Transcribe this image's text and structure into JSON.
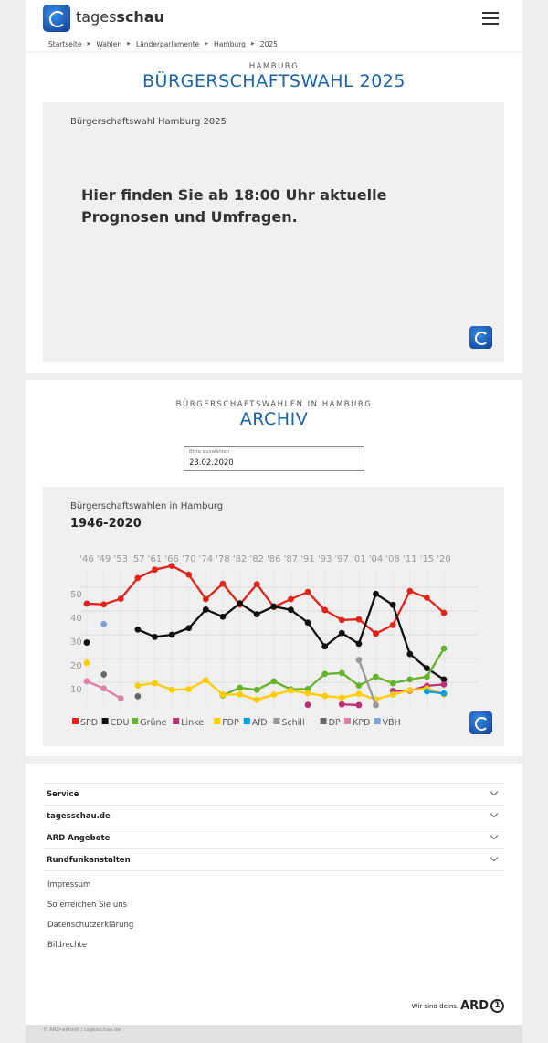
{
  "header": {
    "brand_light": "tages",
    "brand_bold": "schau",
    "breadcrumb": [
      "Startseite",
      "Wahlen",
      "Länderparlamente",
      "Hamburg",
      "2025"
    ]
  },
  "section1": {
    "kicker": "HAMBURG",
    "title": "BÜRGERSCHAFTSWAHL 2025",
    "box_caption": "Bürgerschaftswahl Hamburg 2025",
    "message": "Hier finden Sie ab 18:00 Uhr aktuelle Prognosen und Umfragen."
  },
  "section2": {
    "kicker": "BÜRGERSCHAFTSWAHLEN IN HAMBURG",
    "title": "ARCHIV",
    "select": {
      "label": "Bitte auswählen",
      "value": "23.02.2020"
    }
  },
  "chart_data": {
    "type": "line",
    "title": "Bürgerschaftswahlen in Hamburg",
    "subtitle": "1946-2020",
    "categories": [
      "'46",
      "'49",
      "'53",
      "'57",
      "'61",
      "'66",
      "'70",
      "'74",
      "'78",
      "'82",
      "'82",
      "'86",
      "'87",
      "'91",
      "'93",
      "'97",
      "'01",
      "'04",
      "'08",
      "'11",
      "'15",
      "'20"
    ],
    "yticks": [
      10,
      20,
      30,
      40,
      50
    ],
    "ylim": [
      0,
      60
    ],
    "grid": true,
    "legend": "bottom",
    "series": [
      {
        "name": "SPD",
        "color": "#e2231a",
        "values": [
          43.1,
          42.8,
          45.2,
          53.9,
          57.4,
          59.0,
          55.3,
          45.0,
          51.5,
          42.7,
          51.3,
          41.7,
          45.0,
          48.0,
          40.4,
          36.2,
          36.5,
          30.5,
          34.1,
          48.4,
          45.6,
          39.2
        ]
      },
      {
        "name": "CDU",
        "color": "#111111",
        "values": [
          26.7,
          null,
          null,
          32.2,
          29.1,
          30.0,
          32.8,
          40.6,
          37.6,
          43.2,
          38.6,
          41.9,
          40.5,
          35.1,
          25.1,
          30.7,
          26.2,
          47.2,
          42.6,
          21.9,
          15.9,
          11.2
        ]
      },
      {
        "name": "Grüne",
        "color": "#64b32e",
        "values": [
          null,
          null,
          null,
          null,
          null,
          null,
          null,
          null,
          4.5,
          7.7,
          6.8,
          10.4,
          7.0,
          7.2,
          13.5,
          13.9,
          8.6,
          12.3,
          9.6,
          11.2,
          12.3,
          24.2
        ]
      },
      {
        "name": "Linke",
        "color": "#be3075",
        "values": [
          null,
          null,
          null,
          null,
          null,
          null,
          null,
          null,
          null,
          null,
          null,
          null,
          null,
          0.5,
          null,
          0.7,
          0.4,
          null,
          6.4,
          6.4,
          8.5,
          9.1
        ]
      },
      {
        "name": "FDP",
        "color": "#ffcc00",
        "values": [
          18.2,
          null,
          null,
          8.6,
          9.6,
          6.8,
          7.1,
          10.9,
          4.8,
          4.9,
          2.6,
          4.8,
          6.5,
          5.4,
          4.2,
          3.5,
          5.1,
          2.8,
          4.8,
          6.7,
          7.4,
          4.9
        ]
      },
      {
        "name": "AfD",
        "color": "#009ee0",
        "values": [
          null,
          null,
          null,
          null,
          null,
          null,
          null,
          null,
          null,
          null,
          null,
          null,
          null,
          null,
          null,
          null,
          null,
          null,
          null,
          null,
          6.1,
          5.3
        ]
      },
      {
        "name": "Schill",
        "color": "#999999",
        "values": [
          null,
          null,
          null,
          null,
          null,
          null,
          null,
          null,
          null,
          null,
          null,
          null,
          null,
          null,
          null,
          null,
          19.4,
          0.4,
          null,
          null,
          null,
          null
        ]
      },
      {
        "name": "DP",
        "color": "#666666",
        "values": [
          null,
          13.3,
          null,
          4.1,
          null,
          null,
          null,
          null,
          null,
          null,
          null,
          null,
          null,
          null,
          null,
          null,
          null,
          null,
          null,
          null,
          null,
          null
        ]
      },
      {
        "name": "KPD",
        "color": "#e07fa8",
        "values": [
          10.4,
          7.4,
          3.2,
          null,
          null,
          null,
          null,
          null,
          null,
          null,
          null,
          null,
          null,
          null,
          null,
          null,
          null,
          null,
          null,
          null,
          null,
          null
        ]
      },
      {
        "name": "VBH",
        "color": "#7fa3d6",
        "values": [
          null,
          34.5,
          null,
          null,
          null,
          null,
          null,
          null,
          null,
          null,
          null,
          null,
          null,
          null,
          null,
          null,
          null,
          null,
          null,
          null,
          null,
          null
        ]
      }
    ]
  },
  "footer": {
    "accordions": [
      "Service",
      "tagesschau.de",
      "ARD Angebote",
      "Rundfunkanstalten"
    ],
    "links": [
      "Impressum",
      "So erreichen Sie uns",
      "Datenschutzerklärung",
      "Bildrechte"
    ],
    "ard_slogan": "Wir sind deins.",
    "ard_logo": "ARD",
    "copyright": "© ARD-aktuell / tagesschau.de"
  }
}
